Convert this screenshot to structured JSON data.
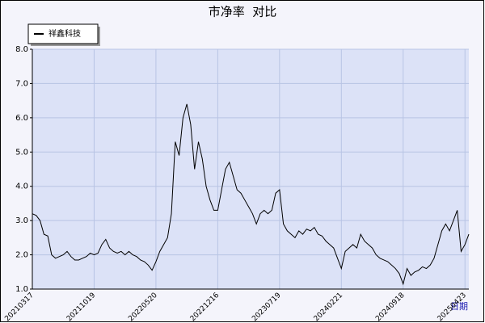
{
  "chart_data": {
    "type": "line",
    "title": "市净率  对比",
    "xlabel": "日期",
    "categories": [
      "20210317",
      null,
      null,
      null,
      null,
      null,
      null,
      null,
      null,
      null,
      null,
      null,
      null,
      null,
      null,
      null,
      "20211019",
      null,
      null,
      null,
      null,
      null,
      null,
      null,
      null,
      null,
      null,
      null,
      null,
      null,
      null,
      null,
      "20220520",
      null,
      null,
      null,
      null,
      null,
      null,
      null,
      null,
      null,
      null,
      null,
      null,
      null,
      null,
      null,
      "20221216",
      null,
      null,
      null,
      null,
      null,
      null,
      null,
      null,
      null,
      null,
      null,
      null,
      null,
      null,
      null,
      "20230719",
      null,
      null,
      null,
      null,
      null,
      null,
      null,
      null,
      null,
      null,
      null,
      null,
      null,
      null,
      null,
      "20240221",
      null,
      null,
      null,
      null,
      null,
      null,
      null,
      null,
      null,
      null,
      null,
      null,
      null,
      null,
      null,
      "20240918",
      null,
      null,
      null,
      null,
      null,
      null,
      null,
      null,
      null,
      null,
      null,
      null,
      null,
      null,
      null,
      "20250423",
      null
    ],
    "series": [
      {
        "name": "祥鑫科技",
        "color": "#000000",
        "values": [
          3.2,
          3.15,
          3.0,
          2.6,
          2.55,
          2.0,
          1.9,
          1.95,
          2.0,
          2.1,
          1.95,
          1.85,
          1.85,
          1.9,
          1.95,
          2.05,
          2.0,
          2.05,
          2.3,
          2.45,
          2.2,
          2.1,
          2.05,
          2.1,
          2.0,
          2.1,
          2.0,
          1.95,
          1.85,
          1.8,
          1.7,
          1.55,
          1.8,
          2.1,
          2.3,
          2.5,
          3.2,
          5.3,
          4.9,
          6.0,
          6.4,
          5.8,
          4.5,
          5.3,
          4.8,
          4.0,
          3.6,
          3.3,
          3.3,
          3.9,
          4.5,
          4.7,
          4.3,
          3.9,
          3.8,
          3.6,
          3.4,
          3.2,
          2.9,
          3.2,
          3.3,
          3.2,
          3.3,
          3.8,
          3.9,
          2.9,
          2.7,
          2.6,
          2.5,
          2.7,
          2.6,
          2.75,
          2.7,
          2.8,
          2.6,
          2.55,
          2.4,
          2.3,
          2.2,
          1.9,
          1.6,
          2.1,
          2.2,
          2.3,
          2.2,
          2.6,
          2.4,
          2.3,
          2.2,
          2.0,
          1.9,
          1.85,
          1.8,
          1.7,
          1.6,
          1.45,
          1.15,
          1.6,
          1.4,
          1.5,
          1.55,
          1.65,
          1.6,
          1.7,
          1.9,
          2.3,
          2.7,
          2.9,
          2.7,
          3.0,
          3.3,
          2.1,
          2.3,
          2.6
        ]
      }
    ],
    "ylim": [
      1,
      8
    ],
    "yticks": [
      {
        "value": 1,
        "label": "1.0"
      },
      {
        "value": 2,
        "label": "2.0"
      },
      {
        "value": 3,
        "label": "3.0"
      },
      {
        "value": 4,
        "label": "4.0"
      },
      {
        "value": 5,
        "label": "5.0"
      },
      {
        "value": 6,
        "label": "6.0"
      },
      {
        "value": 7,
        "label": "7.0"
      },
      {
        "value": 8,
        "label": "8.0"
      }
    ],
    "grid": true,
    "legend": "top-left"
  }
}
